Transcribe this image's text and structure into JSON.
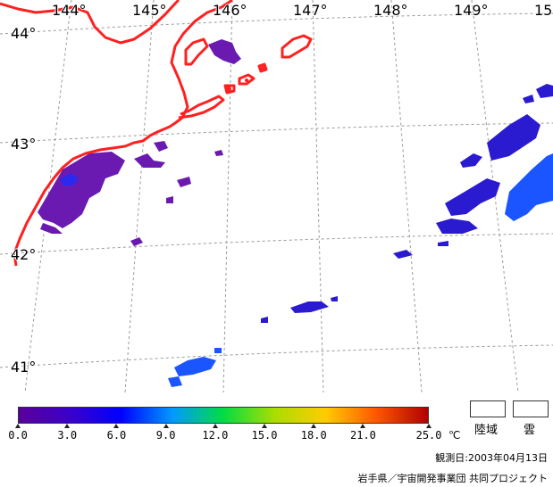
{
  "map": {
    "lon_labels": [
      "144°",
      "145°",
      "146°",
      "147°",
      "148°",
      "149°",
      "15"
    ],
    "lat_labels": [
      "44°",
      "43°",
      "42°",
      "41°"
    ],
    "coast_color": "#ff2020",
    "grid_color": "#9a9a9a"
  },
  "colorbar": {
    "tick_labels": [
      "0.0",
      "3.0",
      "6.0",
      "9.0",
      "12.0",
      "15.0",
      "18.0",
      "21.0",
      "25.0"
    ],
    "unit": "℃",
    "colors": [
      "#5a0099",
      "#3a00cc",
      "#0000ff",
      "#0099ff",
      "#00dd44",
      "#aadd00",
      "#ffcc00",
      "#ff5500",
      "#b00000"
    ]
  },
  "legend": {
    "land_label": "陸域",
    "cloud_label": "雲"
  },
  "footer": {
    "observation_date": "観測日:2003年04月13日",
    "credit": "岩手県／宇宙開発事業団 共同プロジェクト"
  }
}
